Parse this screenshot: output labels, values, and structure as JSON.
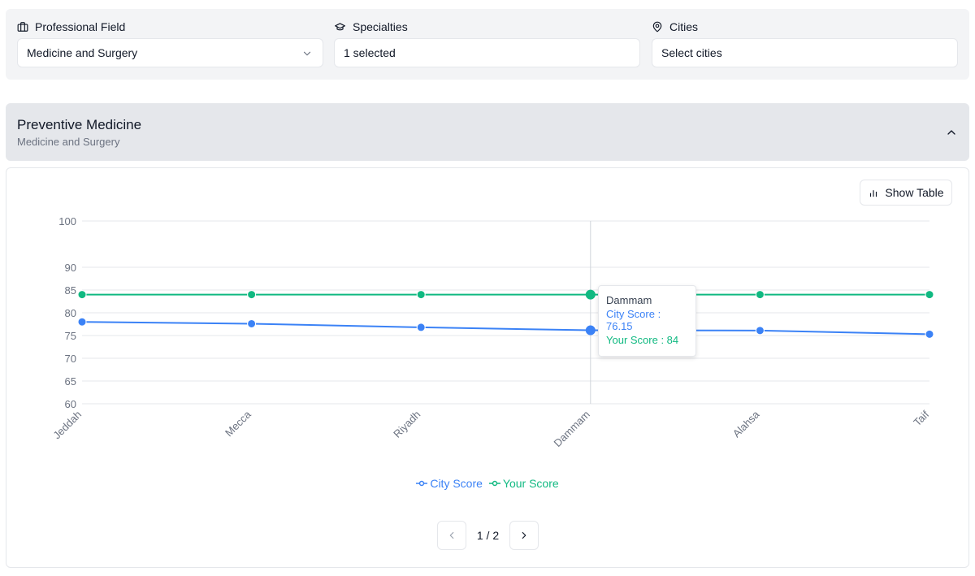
{
  "filters": {
    "professional_field": {
      "label": "Professional Field",
      "value": "Medicine and Surgery",
      "icon": "briefcase-icon"
    },
    "specialties": {
      "label": "Specialties",
      "value": "1 selected",
      "icon": "graduation-cap-icon"
    },
    "cities": {
      "label": "Cities",
      "value": "Select cities",
      "icon": "map-pin-icon"
    }
  },
  "section": {
    "title": "Preventive Medicine",
    "subtitle": "Medicine and Surgery"
  },
  "actions": {
    "show_table_label": "Show Table"
  },
  "tooltip": {
    "title": "Dammam",
    "city_score_text": "City Score : 76.15",
    "your_score_text": "Your Score : 84"
  },
  "pagination": {
    "text": "1 / 2"
  },
  "colors": {
    "city": "#3b82f6",
    "your": "#10b981"
  },
  "chart_data": {
    "type": "line",
    "categories": [
      "Jeddah",
      "Mecca",
      "Riyadh",
      "Dammam",
      "Alahsa",
      "Taif"
    ],
    "series": [
      {
        "name": "City Score",
        "values": [
          78,
          77.6,
          76.8,
          76.15,
          76.1,
          75.3
        ]
      },
      {
        "name": "Your Score",
        "values": [
          84,
          84,
          84,
          84,
          84,
          84
        ]
      }
    ],
    "yticks": [
      60,
      65,
      70,
      75,
      80,
      85,
      90,
      100
    ],
    "ylim": [
      60,
      100
    ],
    "grid": true,
    "legend_position": "bottom-center",
    "highlight_category": "Dammam"
  }
}
